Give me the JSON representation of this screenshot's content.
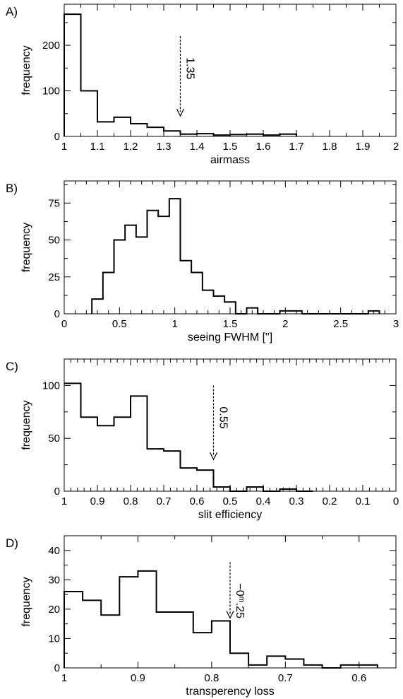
{
  "chart_data": [
    {
      "type": "histogram",
      "panel_label": "A)",
      "xlabel": "airmass",
      "ylabel": "frequency",
      "xlim": [
        1,
        2
      ],
      "ylim": [
        0,
        290
      ],
      "xticks": [
        1,
        1.1,
        1.2,
        1.3,
        1.4,
        1.5,
        1.6,
        1.7,
        1.8,
        1.9,
        2
      ],
      "xtick_labels": [
        "1",
        "1.1",
        "1.2",
        "1.3",
        "1.4",
        "1.5",
        "1.6",
        "1.7",
        "1.8",
        "1.9",
        "2"
      ],
      "yticks": [
        0,
        100,
        200
      ],
      "ytick_labels": [
        "0",
        "100",
        "200"
      ],
      "bin_edges": [
        1.0,
        1.05,
        1.1,
        1.15,
        1.2,
        1.25,
        1.3,
        1.35,
        1.4,
        1.45,
        1.5,
        1.55,
        1.6,
        1.65,
        1.7
      ],
      "counts": [
        268,
        100,
        32,
        42,
        28,
        20,
        12,
        5,
        6,
        3,
        4,
        5,
        3,
        5
      ],
      "annotation": {
        "text": "1.35",
        "x": 1.35,
        "y_start": 220,
        "y_end": 45
      }
    },
    {
      "type": "histogram",
      "panel_label": "B)",
      "xlabel": "seeing FWHM [\"]",
      "ylabel": "frequency",
      "xlim": [
        0,
        3
      ],
      "ylim": [
        0,
        90
      ],
      "xticks": [
        0,
        0.5,
        1,
        1.5,
        2,
        2.5,
        3
      ],
      "xtick_labels": [
        "0",
        "0.5",
        "1",
        "1.5",
        "2",
        "2.5",
        "3"
      ],
      "yticks": [
        0,
        25,
        50,
        75
      ],
      "ytick_labels": [
        "0",
        "25",
        "50",
        "75"
      ],
      "bin_edges": [
        0.25,
        0.35,
        0.45,
        0.55,
        0.65,
        0.75,
        0.85,
        0.95,
        1.05,
        1.15,
        1.25,
        1.35,
        1.45,
        1.55,
        1.65,
        1.75,
        1.85,
        1.95,
        2.05,
        2.15,
        2.25,
        2.35,
        2.45,
        2.55,
        2.65,
        2.75,
        2.85
      ],
      "counts": [
        10,
        28,
        50,
        60,
        52,
        70,
        66,
        78,
        36,
        28,
        16,
        12,
        8,
        0,
        4,
        0,
        0,
        2,
        2,
        0,
        0,
        0,
        0,
        0,
        0,
        2
      ]
    },
    {
      "type": "histogram",
      "panel_label": "C)",
      "xlabel": "slit efficiency",
      "ylabel": "frequency",
      "xlim": [
        1,
        0
      ],
      "ylim": [
        0,
        125
      ],
      "xticks": [
        1,
        0.9,
        0.8,
        0.7,
        0.6,
        0.5,
        0.4,
        0.3,
        0.2,
        0.1,
        0
      ],
      "xtick_labels": [
        "1",
        "0.9",
        "0.8",
        "0.7",
        "0.6",
        "0.5",
        "0.4",
        "0.3",
        "0.2",
        "0.1",
        "0"
      ],
      "yticks": [
        0,
        50,
        100
      ],
      "ytick_labels": [
        "0",
        "50",
        "100"
      ],
      "bin_edges": [
        0.95,
        0.9,
        0.85,
        0.8,
        0.75,
        0.7,
        0.65,
        0.6,
        0.55,
        0.5,
        0.45,
        0.4,
        0.35,
        0.3,
        0.25
      ],
      "counts": [
        70,
        62,
        70,
        90,
        40,
        38,
        22,
        20,
        4,
        0,
        4,
        0,
        2,
        0
      ],
      "left_edge_count": 102,
      "annotation": {
        "text": "0.55",
        "x": 0.55,
        "y_start": 100,
        "y_end": 30
      }
    },
    {
      "type": "histogram",
      "panel_label": "D)",
      "xlabel": "transperency loss",
      "ylabel": "frequency",
      "xlim": [
        1,
        0.55
      ],
      "ylim": [
        0,
        45
      ],
      "xticks": [
        1,
        0.9,
        0.8,
        0.7,
        0.6
      ],
      "xtick_labels": [
        "1",
        "0.9",
        "0.8",
        "0.7",
        "0.6"
      ],
      "yticks": [
        0,
        10,
        20,
        30,
        40
      ],
      "ytick_labels": [
        "0",
        "10",
        "20",
        "30",
        "40"
      ],
      "bin_edges": [
        1.0,
        0.975,
        0.95,
        0.925,
        0.9,
        0.875,
        0.85,
        0.825,
        0.8,
        0.775,
        0.75,
        0.725,
        0.7,
        0.675,
        0.65,
        0.625,
        0.6,
        0.575
      ],
      "counts": [
        26,
        23,
        18,
        31,
        33,
        19,
        19,
        12,
        16,
        5,
        1,
        4,
        3,
        1,
        0,
        1,
        1
      ],
      "annotation": {
        "text": "−0ᵐ.25",
        "x": 0.775,
        "y_start": 36,
        "y_end": 17
      }
    }
  ]
}
